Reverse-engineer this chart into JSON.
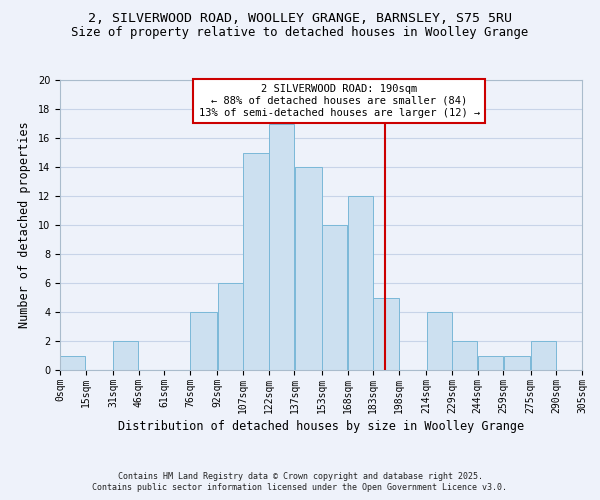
{
  "title1": "2, SILVERWOOD ROAD, WOOLLEY GRANGE, BARNSLEY, S75 5RU",
  "title2": "Size of property relative to detached houses in Woolley Grange",
  "xlabel": "Distribution of detached houses by size in Woolley Grange",
  "ylabel": "Number of detached properties",
  "bin_edges": [
    0,
    15,
    31,
    46,
    61,
    76,
    92,
    107,
    122,
    137,
    153,
    168,
    183,
    198,
    214,
    229,
    244,
    259,
    275,
    290,
    305
  ],
  "bar_heights": [
    1,
    0,
    2,
    0,
    0,
    4,
    6,
    15,
    17,
    14,
    10,
    12,
    5,
    0,
    4,
    2,
    1,
    1,
    2,
    0
  ],
  "bar_color": "#cce0f0",
  "bar_edge_color": "#7ab8d8",
  "grid_color": "#c8d4e8",
  "background_color": "#eef2fa",
  "vline_x": 190,
  "vline_color": "#cc0000",
  "annotation_title": "2 SILVERWOOD ROAD: 190sqm",
  "annotation_line1": "← 88% of detached houses are smaller (84)",
  "annotation_line2": "13% of semi-detached houses are larger (12) →",
  "annotation_box_color": "#ffffff",
  "annotation_box_edge": "#cc0000",
  "ylim": [
    0,
    20
  ],
  "tick_labels": [
    "0sqm",
    "15sqm",
    "31sqm",
    "46sqm",
    "61sqm",
    "76sqm",
    "92sqm",
    "107sqm",
    "122sqm",
    "137sqm",
    "153sqm",
    "168sqm",
    "183sqm",
    "198sqm",
    "214sqm",
    "229sqm",
    "244sqm",
    "259sqm",
    "275sqm",
    "290sqm",
    "305sqm"
  ],
  "footnote1": "Contains HM Land Registry data © Crown copyright and database right 2025.",
  "footnote2": "Contains public sector information licensed under the Open Government Licence v3.0.",
  "title_fontsize": 9.5,
  "subtitle_fontsize": 8.8,
  "axis_label_fontsize": 8.5,
  "tick_fontsize": 7.0,
  "annotation_fontsize": 7.5,
  "footnote_fontsize": 6.0
}
